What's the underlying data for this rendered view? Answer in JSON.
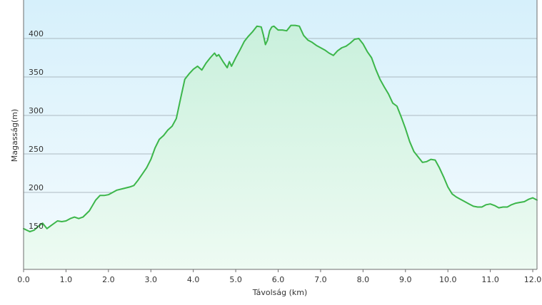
{
  "chart_data": {
    "type": "area",
    "xlabel": "Távolság  (km)",
    "ylabel": "Magasság(m)",
    "xlim": [
      0,
      12.1
    ],
    "ylim": [
      100,
      450
    ],
    "x_ticks": [
      "0.0",
      "1.0",
      "2.0",
      "3.0",
      "4.0",
      "5.0",
      "6.0",
      "7.0",
      "8.0",
      "9.0",
      "10.0",
      "11.0",
      "12.0"
    ],
    "y_ticks": [
      "150",
      "200",
      "250",
      "300",
      "350",
      "400"
    ],
    "grid": true,
    "legend": "none",
    "colors": {
      "line": "#3cb64a",
      "fill_top": "#c9f0dc",
      "fill_bottom": "#eefbf3",
      "plot_top": "#d6f0fb",
      "plot_bottom": "#f4fbfe",
      "grid": "#9aa6ae",
      "axis": "#6d6d6d"
    },
    "series": [
      {
        "x": [
          0.0,
          0.15,
          0.25,
          0.35,
          0.45,
          0.55,
          0.65,
          0.8,
          0.9,
          1.0,
          1.1,
          1.2,
          1.3,
          1.4,
          1.55,
          1.7,
          1.8,
          1.9,
          2.0,
          2.1,
          2.2,
          2.35,
          2.5,
          2.6,
          2.7,
          2.8,
          2.9,
          3.0,
          3.1,
          3.2,
          3.3,
          3.4,
          3.5,
          3.6,
          3.7,
          3.8,
          3.9,
          4.0,
          4.1,
          4.2,
          4.3,
          4.4,
          4.5,
          4.55,
          4.6,
          4.7,
          4.8,
          4.85,
          4.9,
          5.0,
          5.1,
          5.2,
          5.3,
          5.4,
          5.5,
          5.6,
          5.65,
          5.7,
          5.75,
          5.8,
          5.85,
          5.9,
          6.0,
          6.1,
          6.2,
          6.3,
          6.4,
          6.5,
          6.6,
          6.7,
          6.8,
          6.9,
          7.0,
          7.1,
          7.2,
          7.3,
          7.4,
          7.5,
          7.6,
          7.7,
          7.8,
          7.9,
          8.0,
          8.1,
          8.2,
          8.3,
          8.4,
          8.5,
          8.6,
          8.7,
          8.8,
          8.9,
          9.0,
          9.1,
          9.2,
          9.3,
          9.4,
          9.5,
          9.6,
          9.7,
          9.8,
          9.9,
          10.0,
          10.1,
          10.2,
          10.3,
          10.4,
          10.5,
          10.6,
          10.7,
          10.8,
          10.9,
          11.0,
          11.1,
          11.2,
          11.3,
          11.4,
          11.5,
          11.6,
          11.7,
          11.8,
          11.9,
          12.0,
          12.1
        ],
        "values": [
          153,
          149,
          151,
          156,
          160,
          153,
          157,
          163,
          162,
          163,
          166,
          168,
          166,
          168,
          176,
          190,
          196,
          196,
          197,
          200,
          203,
          205,
          207,
          209,
          216,
          224,
          232,
          243,
          258,
          269,
          274,
          281,
          286,
          296,
          322,
          347,
          354,
          360,
          364,
          359,
          368,
          375,
          381,
          377,
          379,
          370,
          362,
          370,
          364,
          375,
          385,
          396,
          403,
          409,
          416,
          415,
          405,
          392,
          398,
          410,
          415,
          416,
          411,
          411,
          410,
          417,
          417,
          416,
          404,
          398,
          395,
          391,
          388,
          385,
          381,
          378,
          384,
          388,
          390,
          394,
          399,
          400,
          393,
          383,
          375,
          360,
          347,
          337,
          328,
          316,
          312,
          298,
          283,
          266,
          253,
          246,
          239,
          240,
          243,
          242,
          232,
          220,
          207,
          198,
          194,
          191,
          188,
          185,
          182,
          181,
          181,
          184,
          185,
          183,
          180,
          181,
          181,
          184,
          186,
          187,
          188,
          191,
          193,
          190
        ]
      }
    ]
  }
}
